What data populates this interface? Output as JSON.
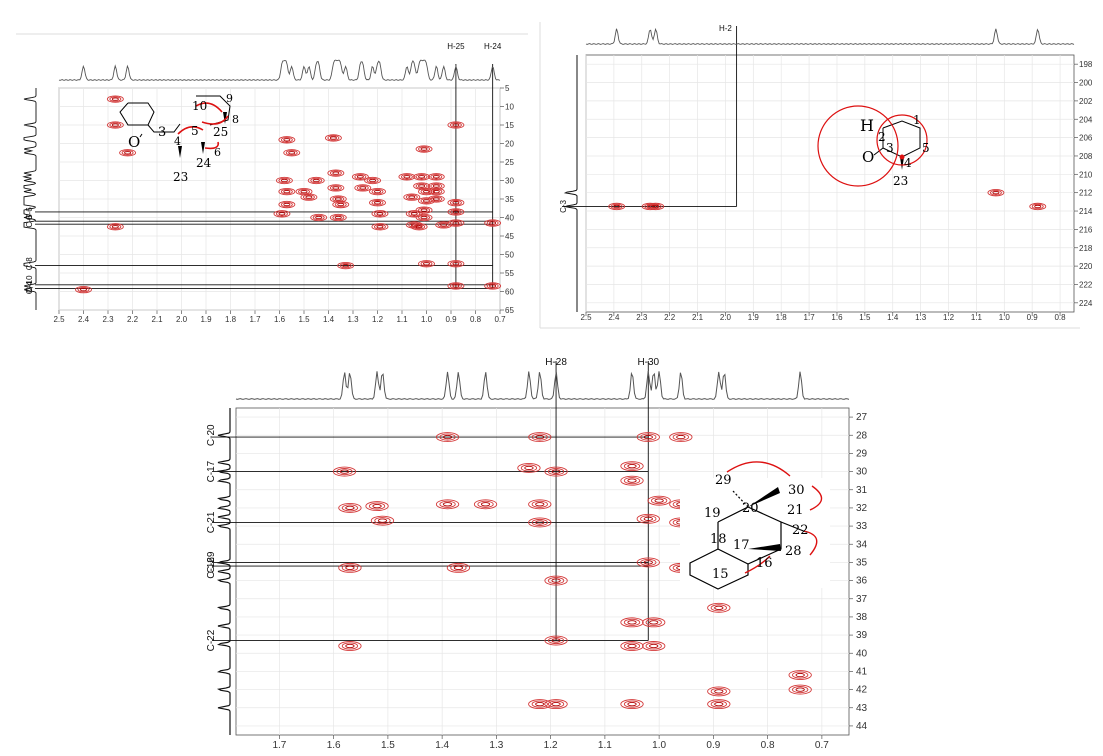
{
  "chart_data": [
    {
      "type": "heatmap",
      "title": "",
      "xlabel": "",
      "ylabel": "",
      "xlim": [
        2.5,
        0.7
      ],
      "ylim": [
        5,
        65
      ],
      "grid": true,
      "x_ticks": [
        "2.5",
        "2.4",
        "2.3",
        "2.2",
        "2.1",
        "2.0",
        "1.9",
        "1.8",
        "1.7",
        "1.6",
        "1.5",
        "1.4",
        "1.3",
        "1.2",
        "1.1",
        "1.0",
        "0.9",
        "0.8",
        "0.7"
      ],
      "y_ticks": [
        "5",
        "10",
        "15",
        "20",
        "25",
        "30",
        "35",
        "40",
        "45",
        "50",
        "55",
        "60",
        "65"
      ],
      "proton_labels": [
        {
          "text": "H-25",
          "x": 0.88
        },
        {
          "text": "H-24",
          "x": 0.73
        }
      ],
      "carbon_labels": [
        {
          "text": "C-6",
          "y": 39
        },
        {
          "text": "C-5",
          "y": 41
        },
        {
          "text": "C-8",
          "y": 52.5
        },
        {
          "text": "C-10",
          "y": 58
        },
        {
          "text": "C-4",
          "y": 59
        }
      ],
      "guide_lines_h": [
        38.5,
        41,
        41.8,
        53,
        58.2,
        59.2
      ],
      "guide_lines_v": [
        0.88,
        0.73
      ],
      "peaks": [
        {
          "x": 2.27,
          "y": 8
        },
        {
          "x": 2.27,
          "y": 15
        },
        {
          "x": 2.22,
          "y": 22.5
        },
        {
          "x": 2.27,
          "y": 42.5
        },
        {
          "x": 1.57,
          "y": 19
        },
        {
          "x": 1.55,
          "y": 22.5
        },
        {
          "x": 1.58,
          "y": 30
        },
        {
          "x": 1.57,
          "y": 33
        },
        {
          "x": 1.57,
          "y": 36.5
        },
        {
          "x": 1.59,
          "y": 39
        },
        {
          "x": 1.5,
          "y": 33
        },
        {
          "x": 1.48,
          "y": 34.5
        },
        {
          "x": 1.45,
          "y": 30
        },
        {
          "x": 1.44,
          "y": 40
        },
        {
          "x": 1.38,
          "y": 18.5
        },
        {
          "x": 1.37,
          "y": 28
        },
        {
          "x": 1.37,
          "y": 32
        },
        {
          "x": 1.36,
          "y": 35
        },
        {
          "x": 1.35,
          "y": 36.5
        },
        {
          "x": 1.36,
          "y": 40
        },
        {
          "x": 1.27,
          "y": 29
        },
        {
          "x": 1.26,
          "y": 32
        },
        {
          "x": 1.22,
          "y": 30
        },
        {
          "x": 1.2,
          "y": 33
        },
        {
          "x": 1.2,
          "y": 36
        },
        {
          "x": 1.19,
          "y": 39
        },
        {
          "x": 1.19,
          "y": 42.5
        },
        {
          "x": 1.08,
          "y": 29
        },
        {
          "x": 1.06,
          "y": 34.5
        },
        {
          "x": 1.05,
          "y": 39
        },
        {
          "x": 1.05,
          "y": 42
        },
        {
          "x": 1.01,
          "y": 21.5
        },
        {
          "x": 1.02,
          "y": 29
        },
        {
          "x": 1.02,
          "y": 31.5
        },
        {
          "x": 1.0,
          "y": 33
        },
        {
          "x": 1.0,
          "y": 35.5
        },
        {
          "x": 1.01,
          "y": 38
        },
        {
          "x": 1.01,
          "y": 40
        },
        {
          "x": 1.03,
          "y": 42.5
        },
        {
          "x": 1.0,
          "y": 52.5
        },
        {
          "x": 0.96,
          "y": 29
        },
        {
          "x": 0.96,
          "y": 31.5
        },
        {
          "x": 0.96,
          "y": 33
        },
        {
          "x": 0.96,
          "y": 35
        },
        {
          "x": 0.93,
          "y": 42
        },
        {
          "x": 0.88,
          "y": 15
        },
        {
          "x": 0.88,
          "y": 36
        },
        {
          "x": 0.88,
          "y": 38.5
        },
        {
          "x": 0.88,
          "y": 41.5
        },
        {
          "x": 0.88,
          "y": 52.5
        },
        {
          "x": 0.88,
          "y": 58.5
        },
        {
          "x": 0.73,
          "y": 41.5
        },
        {
          "x": 0.73,
          "y": 58.5
        },
        {
          "x": 2.4,
          "y": 59.5
        },
        {
          "x": 1.33,
          "y": 53
        }
      ],
      "structure_labels": [
        "3",
        "O",
        "5",
        "4",
        "23",
        "24",
        "10",
        "9",
        "8",
        "25",
        "6"
      ]
    },
    {
      "type": "heatmap",
      "title": "",
      "xlabel": "",
      "ylabel": "",
      "xlim": [
        2.5,
        0.75
      ],
      "ylim": [
        197,
        225
      ],
      "grid": true,
      "x_ticks": [
        "2.5",
        "2.4",
        "2.3",
        "2.2",
        "2.1",
        "2.0",
        "1.9",
        "1.8",
        "1.7",
        "1.6",
        "1.5",
        "1.4",
        "1.3",
        "1.2",
        "1.1",
        "1.0",
        "0.9",
        "0.8"
      ],
      "y_ticks": [
        "198",
        "200",
        "202",
        "204",
        "206",
        "208",
        "210",
        "212",
        "214",
        "216",
        "218",
        "220",
        "222",
        "224"
      ],
      "proton_labels": [
        {
          "text": "H-2",
          "x": 2.0
        }
      ],
      "carbon_labels": [
        {
          "text": "C-3",
          "y": 213.5
        }
      ],
      "guide_lines_h": [
        213.5
      ],
      "guide_lines_v": [
        1.96
      ],
      "peaks": [
        {
          "x": 2.39,
          "y": 213.5
        },
        {
          "x": 2.27,
          "y": 213.5
        },
        {
          "x": 2.25,
          "y": 213.5
        },
        {
          "x": 0.88,
          "y": 213.5
        },
        {
          "x": 1.03,
          "y": 212
        }
      ],
      "structure_labels": [
        "H",
        "2",
        "1",
        "O",
        "3",
        "5",
        "4",
        "23"
      ]
    },
    {
      "type": "heatmap",
      "title": "",
      "xlabel": "",
      "ylabel": "",
      "xlim": [
        1.78,
        0.65
      ],
      "ylim": [
        26.5,
        44.5
      ],
      "grid": true,
      "x_ticks": [
        "1.7",
        "1.6",
        "1.5",
        "1.4",
        "1.3",
        "1.2",
        "1.1",
        "1.0",
        "0.9",
        "0.8",
        "0.7"
      ],
      "y_ticks": [
        "27",
        "28",
        "29",
        "30",
        "31",
        "32",
        "33",
        "34",
        "35",
        "36",
        "37",
        "38",
        "39",
        "40",
        "41",
        "42",
        "43",
        "44"
      ],
      "proton_labels": [
        {
          "text": "H-28",
          "x": 1.19
        },
        {
          "text": "H-30",
          "x": 1.02
        }
      ],
      "carbon_labels": [
        {
          "text": "C-20",
          "y": 28
        },
        {
          "text": "C-17",
          "y": 30
        },
        {
          "text": "C-21",
          "y": 32.8
        },
        {
          "text": "C-29",
          "y": 35
        },
        {
          "text": "C-16",
          "y": 35.3
        },
        {
          "text": "C-22",
          "y": 39.3
        }
      ],
      "guide_lines_h": [
        28.1,
        30,
        32.8,
        35,
        35.2,
        39.3
      ],
      "guide_lines_v": [
        1.19,
        1.02
      ],
      "peaks": [
        {
          "x": 1.39,
          "y": 28.1
        },
        {
          "x": 1.22,
          "y": 28.1
        },
        {
          "x": 1.02,
          "y": 28.1
        },
        {
          "x": 0.96,
          "y": 28.1
        },
        {
          "x": 1.58,
          "y": 30
        },
        {
          "x": 1.24,
          "y": 29.8
        },
        {
          "x": 1.19,
          "y": 30
        },
        {
          "x": 1.05,
          "y": 29.7
        },
        {
          "x": 1.05,
          "y": 30.5
        },
        {
          "x": 1.57,
          "y": 32
        },
        {
          "x": 1.52,
          "y": 31.9
        },
        {
          "x": 1.39,
          "y": 31.8
        },
        {
          "x": 1.32,
          "y": 31.8
        },
        {
          "x": 1.22,
          "y": 31.8
        },
        {
          "x": 1.0,
          "y": 31.6
        },
        {
          "x": 0.96,
          "y": 31.8
        },
        {
          "x": 1.51,
          "y": 32.7
        },
        {
          "x": 1.22,
          "y": 32.8
        },
        {
          "x": 1.02,
          "y": 32.6
        },
        {
          "x": 0.96,
          "y": 32.8
        },
        {
          "x": 1.57,
          "y": 35.3
        },
        {
          "x": 1.37,
          "y": 35.3
        },
        {
          "x": 1.02,
          "y": 35
        },
        {
          "x": 0.96,
          "y": 35.3
        },
        {
          "x": 0.88,
          "y": 35.5
        },
        {
          "x": 1.19,
          "y": 36
        },
        {
          "x": 0.89,
          "y": 37.5
        },
        {
          "x": 1.05,
          "y": 38.3
        },
        {
          "x": 1.01,
          "y": 38.3
        },
        {
          "x": 1.19,
          "y": 39.3
        },
        {
          "x": 1.57,
          "y": 39.6
        },
        {
          "x": 1.05,
          "y": 39.6
        },
        {
          "x": 1.01,
          "y": 39.6
        },
        {
          "x": 0.74,
          "y": 41.2
        },
        {
          "x": 0.74,
          "y": 42
        },
        {
          "x": 0.89,
          "y": 42.1
        },
        {
          "x": 1.19,
          "y": 42.8
        },
        {
          "x": 1.22,
          "y": 42.8
        },
        {
          "x": 1.05,
          "y": 42.8
        },
        {
          "x": 0.89,
          "y": 42.8
        }
      ],
      "structure_labels": [
        "29",
        "30",
        "19",
        "20",
        "21",
        "22",
        "18",
        "17",
        "28",
        "16",
        "15"
      ]
    }
  ]
}
